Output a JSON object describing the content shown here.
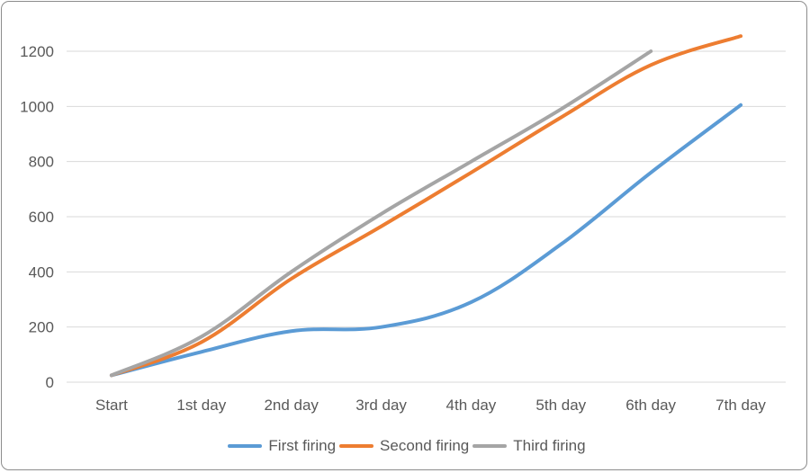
{
  "chart_data": {
    "type": "line",
    "title": "",
    "xlabel": "",
    "ylabel": "",
    "categories": [
      "Start",
      "1st day",
      "2nd day",
      "3rd day",
      "4th day",
      "5th day",
      "6th day",
      "7th day"
    ],
    "ylim": [
      0,
      1200
    ],
    "yticks": [
      "0",
      "200",
      "400",
      "600",
      "800",
      "1000",
      "1200"
    ],
    "grid": "horizontal",
    "legend": "bottom",
    "series": [
      {
        "name": "First firing",
        "color": "#5b9bd5",
        "values": [
          25,
          110,
          185,
          200,
          290,
          500,
          760,
          1005
        ]
      },
      {
        "name": "Second firing",
        "color": "#ed7d31",
        "values": [
          25,
          145,
          375,
          565,
          760,
          960,
          1150,
          1255
        ]
      },
      {
        "name": "Third firing",
        "color": "#a5a5a5",
        "values": [
          25,
          165,
          400,
          610,
          800,
          990,
          1200,
          null
        ]
      }
    ]
  }
}
